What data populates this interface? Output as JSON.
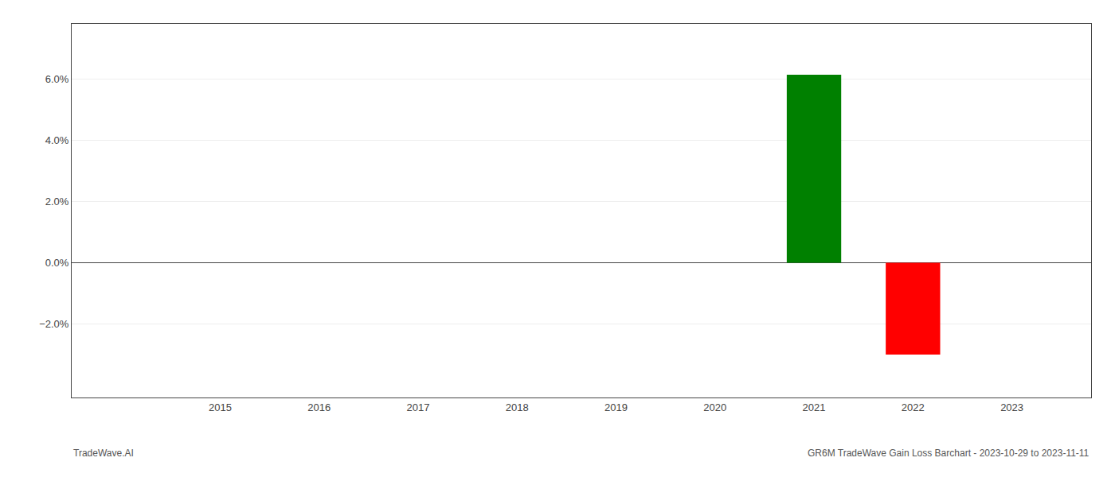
{
  "chart_data": {
    "type": "bar",
    "x": [
      2021,
      2022
    ],
    "values": [
      0.0614,
      -0.03
    ],
    "colors": [
      "#008000",
      "#ff0000"
    ],
    "xlim": [
      2013.5,
      2023.8
    ],
    "xticks": [
      2015,
      2016,
      2017,
      2018,
      2019,
      2020,
      2021,
      2022,
      2023
    ],
    "ylim": [
      -0.044,
      0.078
    ],
    "yticks": [
      {
        "value": -0.02,
        "label": "−2.0%"
      },
      {
        "value": 0.0,
        "label": "0.0%"
      },
      {
        "value": 0.02,
        "label": "2.0%"
      },
      {
        "value": 0.04,
        "label": "4.0%"
      },
      {
        "value": 0.06,
        "label": "6.0%"
      }
    ],
    "grid": true,
    "annotations": [
      "TradeWave.AI",
      "GR6M TradeWave Gain Loss Barchart - 2023-10-29 to 2023-11-11"
    ]
  }
}
